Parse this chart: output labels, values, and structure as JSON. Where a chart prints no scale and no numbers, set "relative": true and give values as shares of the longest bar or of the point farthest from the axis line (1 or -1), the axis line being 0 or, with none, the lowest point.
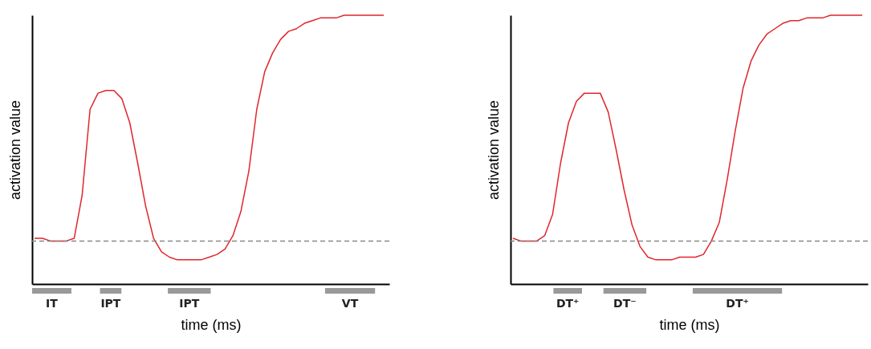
{
  "chart_data": [
    {
      "type": "line",
      "relative": true,
      "xlabel": "time (ms)",
      "ylabel": "activation value",
      "categories": [
        null,
        null,
        null,
        null,
        null,
        null,
        null,
        null,
        null,
        null,
        null,
        null,
        null,
        null,
        null,
        null,
        null,
        null,
        null,
        null,
        null,
        null,
        null,
        null,
        null,
        null,
        null,
        null,
        null,
        null,
        null,
        null,
        null,
        null,
        null,
        null,
        null,
        null,
        null,
        null,
        null,
        null,
        null,
        null,
        null
      ],
      "series": [
        {
          "color": "#e0262b",
          "values": [
            0.17,
            0.17,
            0.16,
            0.16,
            0.16,
            0.17,
            0.33,
            0.65,
            0.71,
            0.72,
            0.72,
            0.69,
            0.6,
            0.45,
            0.29,
            0.17,
            0.12,
            0.1,
            0.09,
            0.09,
            0.09,
            0.09,
            0.1,
            0.11,
            0.13,
            0.18,
            0.27,
            0.42,
            0.65,
            0.79,
            0.86,
            0.91,
            0.94,
            0.95,
            0.97,
            0.98,
            0.99,
            0.99,
            0.99,
            1,
            1,
            1,
            1,
            1,
            1
          ]
        }
      ],
      "ref_lines": [
        {
          "axis": "y",
          "value": 0.16,
          "color": "#888888",
          "line_style": "dashed"
        }
      ],
      "annotations": [
        "IT",
        "IPT",
        "IPT",
        "VT"
      ]
    },
    {
      "type": "line",
      "relative": true,
      "xlabel": "time (ms)",
      "ylabel": "activation value",
      "categories": [
        null,
        null,
        null,
        null,
        null,
        null,
        null,
        null,
        null,
        null,
        null,
        null,
        null,
        null,
        null,
        null,
        null,
        null,
        null,
        null,
        null,
        null,
        null,
        null,
        null,
        null,
        null,
        null,
        null,
        null,
        null,
        null,
        null,
        null,
        null,
        null,
        null,
        null,
        null,
        null,
        null,
        null,
        null,
        null,
        null
      ],
      "series": [
        {
          "color": "#e0262b",
          "values": [
            0.17,
            0.16,
            0.16,
            0.16,
            0.18,
            0.26,
            0.45,
            0.6,
            0.68,
            0.71,
            0.71,
            0.71,
            0.64,
            0.5,
            0.35,
            0.22,
            0.14,
            0.1,
            0.09,
            0.09,
            0.09,
            0.1,
            0.1,
            0.1,
            0.11,
            0.16,
            0.23,
            0.39,
            0.57,
            0.73,
            0.83,
            0.89,
            0.93,
            0.95,
            0.97,
            0.98,
            0.98,
            0.99,
            0.99,
            0.99,
            1,
            1,
            1,
            1,
            1
          ]
        }
      ],
      "ref_lines": [
        {
          "axis": "y",
          "value": 0.16,
          "color": "#888888",
          "line_style": "dashed"
        }
      ],
      "annotations": [
        "DT⁺",
        "DT⁻",
        "DT⁺"
      ]
    }
  ]
}
